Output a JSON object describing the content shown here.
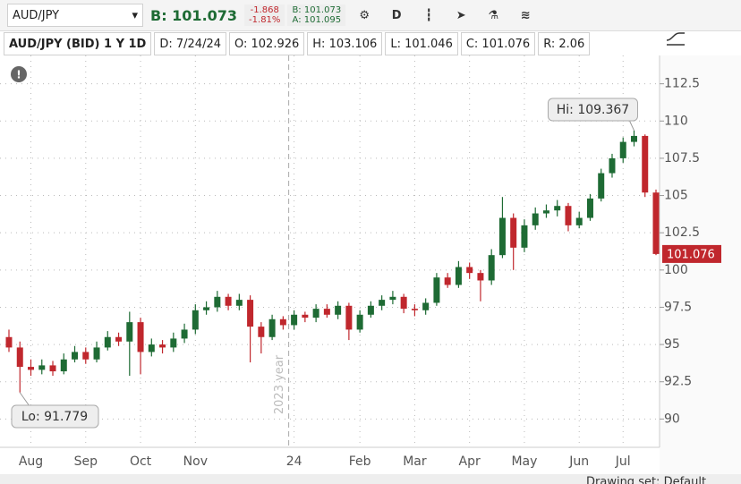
{
  "toolbar": {
    "symbol": "AUD/JPY",
    "bid": "B: 101.073",
    "change": "-1.868",
    "change_pct": "-1.81%",
    "bid_small": "B: 101.073",
    "ask_small": "A: 101.095",
    "aggregation": "D"
  },
  "info_bar": [
    "AUD/JPY (BID) 1 Y 1D",
    "D: 7/24/24",
    "O: 102.926",
    "H: 103.106",
    "L: 101.046",
    "C: 101.076",
    "R: 2.06"
  ],
  "chart_data": {
    "type": "candlestick",
    "categories": [
      null,
      null,
      "Aug",
      null,
      null,
      null,
      null,
      "Sep",
      null,
      null,
      null,
      null,
      "Oct",
      null,
      null,
      null,
      null,
      "Nov",
      null,
      null,
      null,
      null,
      null,
      null,
      null,
      null,
      "24",
      null,
      null,
      null,
      null,
      null,
      "Feb",
      null,
      null,
      null,
      null,
      "Mar",
      null,
      null,
      null,
      null,
      "Apr",
      null,
      null,
      null,
      null,
      "May",
      null,
      null,
      null,
      null,
      "Jun",
      null,
      null,
      null,
      "Jul",
      null,
      null,
      null
    ],
    "open": [
      95.5,
      94.8,
      93.5,
      93.3,
      93.6,
      93.2,
      94.0,
      94.5,
      94.0,
      94.8,
      95.5,
      95.2,
      96.5,
      94.5,
      95.0,
      94.8,
      95.4,
      96.0,
      97.3,
      97.5,
      98.2,
      97.6,
      98.0,
      96.2,
      95.5,
      96.7,
      96.3,
      97.0,
      96.8,
      97.4,
      97.0,
      97.6,
      96.0,
      97.0,
      97.6,
      98.0,
      98.2,
      97.4,
      97.3,
      97.8,
      99.5,
      99.0,
      100.2,
      99.8,
      99.3,
      101.0,
      103.5,
      101.5,
      103.0,
      103.8,
      104.0,
      104.3,
      103.0,
      103.5,
      104.8,
      106.5,
      107.5,
      108.6,
      109.0,
      105.2
    ],
    "high": [
      96.0,
      95.2,
      94.0,
      94.0,
      93.9,
      94.4,
      94.9,
      94.8,
      95.2,
      95.9,
      95.8,
      97.2,
      96.8,
      95.4,
      95.3,
      95.8,
      96.4,
      97.7,
      97.9,
      98.6,
      98.4,
      98.4,
      98.3,
      96.5,
      97.0,
      96.9,
      97.3,
      97.2,
      97.7,
      97.7,
      97.9,
      97.8,
      97.3,
      97.9,
      98.3,
      98.6,
      98.4,
      97.7,
      98.1,
      99.8,
      99.8,
      100.6,
      100.5,
      100.0,
      101.4,
      104.9,
      103.8,
      103.4,
      104.2,
      104.4,
      104.7,
      104.5,
      103.9,
      105.1,
      106.8,
      107.8,
      108.9,
      109.367,
      109.1,
      105.4
    ],
    "low": [
      94.5,
      91.779,
      92.9,
      93.0,
      92.9,
      93.0,
      93.8,
      93.7,
      93.8,
      94.6,
      94.9,
      92.9,
      93.0,
      94.2,
      94.4,
      94.5,
      95.1,
      95.7,
      97.0,
      97.2,
      97.3,
      97.3,
      93.8,
      94.4,
      95.3,
      96.0,
      96.0,
      96.5,
      96.5,
      96.8,
      96.7,
      95.3,
      95.8,
      96.8,
      97.3,
      97.7,
      97.1,
      96.9,
      97.0,
      97.6,
      98.8,
      98.8,
      99.4,
      97.9,
      99.0,
      100.8,
      100.0,
      101.2,
      102.7,
      103.5,
      103.6,
      102.6,
      102.8,
      103.3,
      104.6,
      106.2,
      107.2,
      108.3,
      104.9,
      101.0
    ],
    "close": [
      94.8,
      93.5,
      93.3,
      93.6,
      93.2,
      94.0,
      94.5,
      94.0,
      94.8,
      95.5,
      95.2,
      96.5,
      94.5,
      95.0,
      94.8,
      95.4,
      96.0,
      97.3,
      97.5,
      98.2,
      97.6,
      98.0,
      96.2,
      95.5,
      96.7,
      96.3,
      97.0,
      96.8,
      97.4,
      97.0,
      97.6,
      96.0,
      97.0,
      97.6,
      98.0,
      98.2,
      97.4,
      97.3,
      97.8,
      99.5,
      99.0,
      100.2,
      99.8,
      99.3,
      101.0,
      103.5,
      101.5,
      103.0,
      103.8,
      104.0,
      104.3,
      103.0,
      103.5,
      104.8,
      106.5,
      107.5,
      108.6,
      109.0,
      105.2,
      101.076
    ],
    "up_color": "#1e6b34",
    "down_color": "#c0272d",
    "ylim": [
      88.1,
      114.4
    ],
    "yticks": [
      90,
      92.5,
      95,
      97.5,
      100,
      102.5,
      105,
      107.5,
      110,
      112.5
    ],
    "grid": true,
    "hi_label": "Hi: 109.367",
    "lo_label": "Lo: 91.779",
    "last_label": "101.076",
    "year_marker": "2023 year"
  },
  "footer": {
    "drawing_set": "Drawing set: Default"
  }
}
